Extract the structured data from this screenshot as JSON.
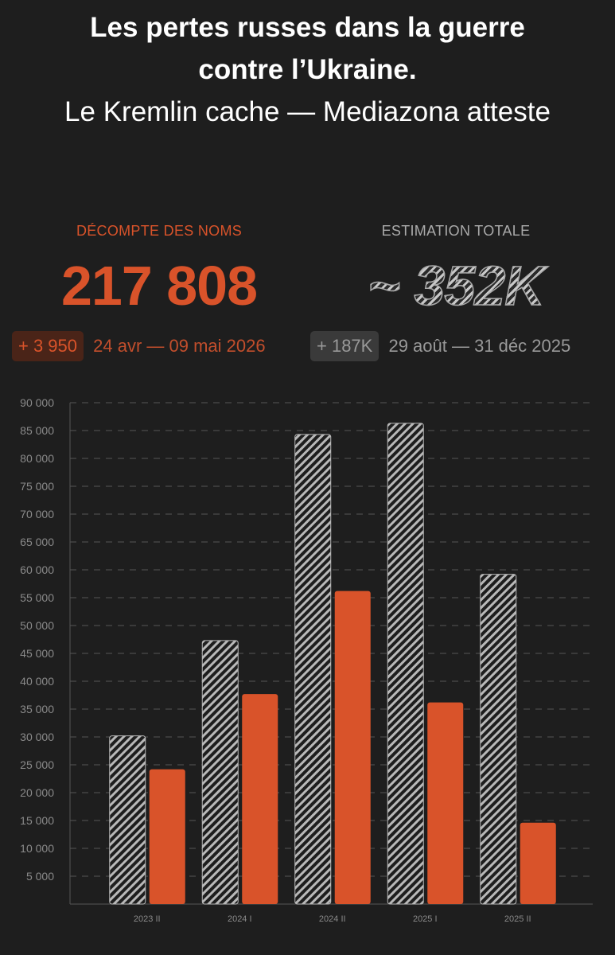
{
  "header": {
    "title": "Les pertes russes dans la guerre contre l’Ukraine.",
    "subtitle": "Le Kremlin cache — Mediazona atteste"
  },
  "stats": [
    {
      "label": "DÉCOMPTE DES NOMS",
      "value": "217 808",
      "delta": "+ 3 950",
      "period": "24 avr — 09 mai 2026"
    },
    {
      "label": "ESTIMATION TOTALE",
      "value": "~ 352K",
      "delta": "+ 187K",
      "period": "29 août — 31 déc 2025"
    }
  ],
  "chart_data": {
    "type": "bar",
    "categories": [
      "2023 II",
      "2024 I",
      "2024 II",
      "2025 I",
      "2025 II"
    ],
    "series": [
      {
        "color": "#b8b8b8",
        "pattern": "hatched",
        "values": [
          30200,
          47300,
          84300,
          86300,
          59200
        ]
      },
      {
        "color": "#d9532a",
        "values": [
          24200,
          37700,
          56200,
          36200,
          14600
        ]
      }
    ],
    "ylim": [
      0,
      90000
    ],
    "yticks": [
      {
        "value": 5000,
        "label": "5 000"
      },
      {
        "value": 10000,
        "label": "10 000"
      },
      {
        "value": 15000,
        "label": "15 000"
      },
      {
        "value": 20000,
        "label": "20 000"
      },
      {
        "value": 25000,
        "label": "25 000"
      },
      {
        "value": 30000,
        "label": "30 000"
      },
      {
        "value": 35000,
        "label": "35 000"
      },
      {
        "value": 40000,
        "label": "40 000"
      },
      {
        "value": 45000,
        "label": "45 000"
      },
      {
        "value": 50000,
        "label": "50 000"
      },
      {
        "value": 55000,
        "label": "55 000"
      },
      {
        "value": 60000,
        "label": "60 000"
      },
      {
        "value": 65000,
        "label": "65 000"
      },
      {
        "value": 70000,
        "label": "70 000"
      },
      {
        "value": 75000,
        "label": "75 000"
      },
      {
        "value": 80000,
        "label": "80 000"
      },
      {
        "value": 85000,
        "label": "85 000"
      },
      {
        "value": 90000,
        "label": "90 000"
      }
    ],
    "grid": true
  }
}
